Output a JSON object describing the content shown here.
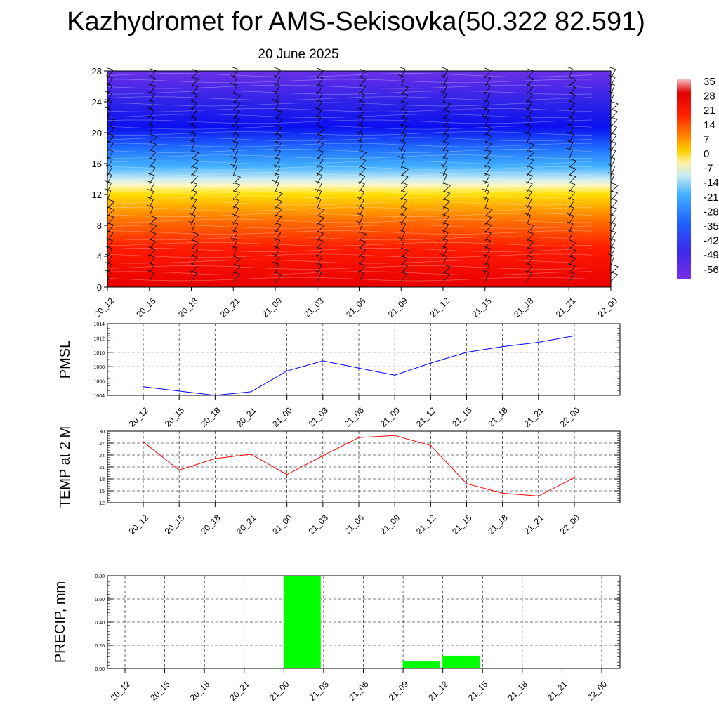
{
  "title": "Kazhydromet for AMS-Sekisovka(50.322 82.591)",
  "subtitle": "20 June 2025",
  "time_labels": [
    "20_12",
    "20_15",
    "20_18",
    "20_21",
    "21_00",
    "21_03",
    "21_06",
    "21_09",
    "21_12",
    "21_15",
    "21_18",
    "21_21",
    "22_00"
  ],
  "chart_data": [
    {
      "type": "heatmap",
      "description_ylabel": "",
      "x": [
        "20_12",
        "20_15",
        "20_18",
        "20_21",
        "21_00",
        "21_03",
        "21_06",
        "21_09",
        "21_12",
        "21_15",
        "21_18",
        "21_21",
        "22_00"
      ],
      "y_ticks": [
        0,
        4,
        8,
        12,
        16,
        20,
        24,
        28
      ],
      "ylim": [
        0,
        28
      ],
      "colorbar_labels": [
        "35",
        "28",
        "21",
        "14",
        "7",
        "0",
        "-7",
        "-14",
        "-21",
        "-28",
        "-35",
        "-42",
        "-49",
        "-56"
      ],
      "colorbar_colors": [
        "#f4c8c8",
        "#ee3030",
        "#e00000",
        "#ff2000",
        "#ff6a00",
        "#ffa000",
        "#ffd000",
        "#fff0a0",
        "#c8ecf4",
        "#40b0ff",
        "#2070ff",
        "#3050f0",
        "#2b1be8",
        "#7a30e8"
      ],
      "legend_position": "right"
    },
    {
      "type": "line",
      "ylabel": "PMSL",
      "categories": [
        "20_12",
        "20_15",
        "20_18",
        "20_21",
        "21_00",
        "21_03",
        "21_06",
        "21_09",
        "21_12",
        "21_15",
        "21_18",
        "21_21",
        "22_00"
      ],
      "values": [
        1005.2,
        1004.6,
        1004.0,
        1004.5,
        1007.4,
        1008.8,
        1007.8,
        1006.8,
        1008.5,
        1010.0,
        1010.8,
        1011.4,
        1012.3
      ],
      "ylim": [
        1004,
        1014
      ],
      "y_ticks": [
        1004,
        1006,
        1008,
        1010,
        1012,
        1014
      ],
      "color": "#0000ff",
      "grid": true
    },
    {
      "type": "line",
      "ylabel": "TEMP at 2 M",
      "categories": [
        "20_12",
        "20_15",
        "20_18",
        "20_21",
        "21_00",
        "21_03",
        "21_06",
        "21_09",
        "21_12",
        "21_15",
        "21_18",
        "21_21",
        "22_00"
      ],
      "values": [
        27.3,
        20.2,
        23.1,
        24.2,
        19.1,
        23.8,
        28.4,
        28.9,
        26.4,
        16.8,
        14.4,
        13.7,
        18.3
      ],
      "ylim": [
        12,
        30
      ],
      "y_ticks": [
        12,
        15,
        18,
        21,
        24,
        27,
        30
      ],
      "color": "#ff0000",
      "grid": true
    },
    {
      "type": "bar",
      "ylabel": "PRECIP, mm",
      "categories": [
        "20_12",
        "20_15",
        "20_18",
        "20_21",
        "21_00",
        "21_03",
        "21_06",
        "21_09",
        "21_12",
        "21_15",
        "21_18",
        "21_21",
        "22_00"
      ],
      "values": [
        0,
        0,
        0,
        0,
        0.8,
        0,
        0,
        0.06,
        0.11,
        0,
        0,
        0,
        0
      ],
      "ylim": [
        0,
        0.8
      ],
      "y_ticks": [
        "0.00",
        "0.20",
        "0.40",
        "0.60",
        "0.80"
      ],
      "color": "#00ff00",
      "grid": true
    }
  ]
}
